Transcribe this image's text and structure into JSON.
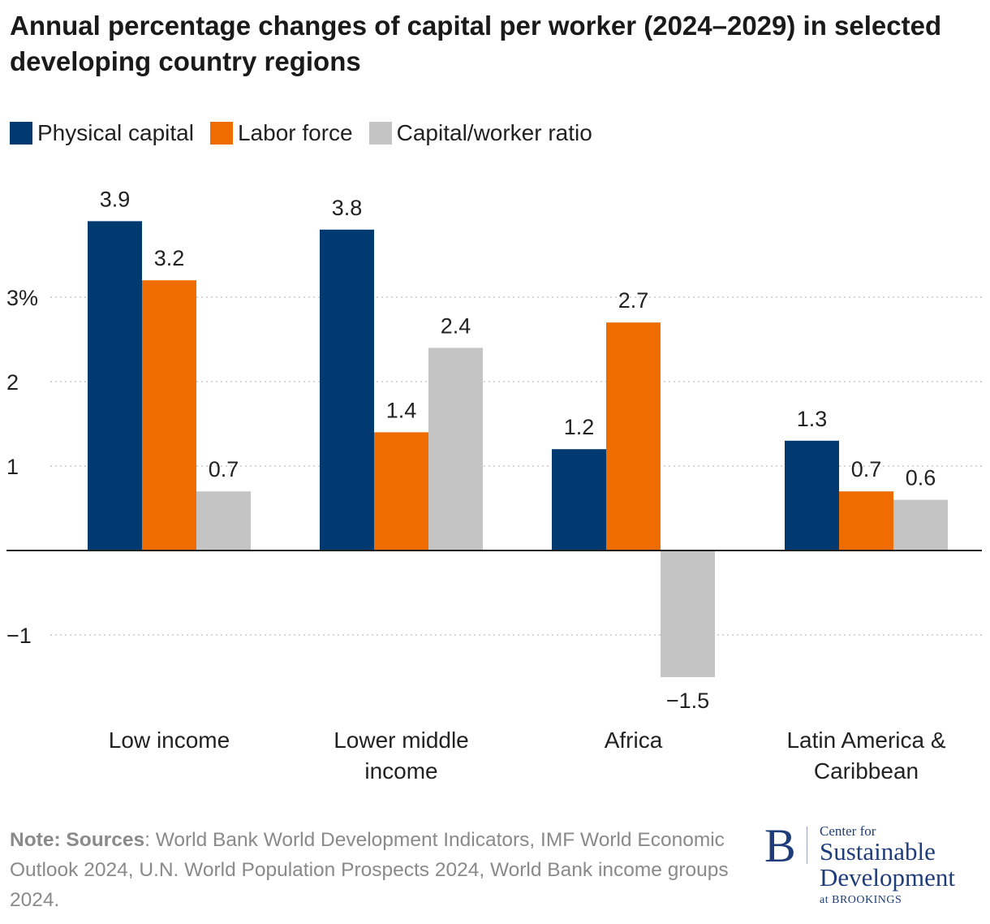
{
  "title": "Annual percentage changes of capital per worker (2024–2029) in selected developing country regions",
  "legend": {
    "items": [
      {
        "label": "Physical capital",
        "color": "#003a70"
      },
      {
        "label": "Labor force",
        "color": "#ef6c00"
      },
      {
        "label": "Capital/worker ratio",
        "color": "#c4c4c4"
      }
    ]
  },
  "chart_data": {
    "type": "bar",
    "categories": [
      [
        "Low income"
      ],
      [
        "Lower middle",
        "income"
      ],
      [
        "Africa"
      ],
      [
        "Latin America &",
        "Caribbean"
      ]
    ],
    "series": [
      {
        "name": "Physical capital",
        "color": "#003a70",
        "values": [
          3.9,
          3.8,
          1.2,
          1.3
        ],
        "labels": [
          "3.9",
          "3.8",
          "1.2",
          "1.3"
        ]
      },
      {
        "name": "Labor force",
        "color": "#ef6c00",
        "values": [
          3.2,
          1.4,
          2.7,
          0.7
        ],
        "labels": [
          "3.2",
          "1.4",
          "2.7",
          "0.7"
        ]
      },
      {
        "name": "Capital/worker ratio",
        "color": "#c4c4c4",
        "values": [
          0.7,
          2.4,
          -1.5,
          0.6
        ],
        "labels": [
          "0.7",
          "2.4",
          "−1.5",
          "0.6"
        ]
      }
    ],
    "yticks": [
      {
        "value": 3,
        "label": "3%"
      },
      {
        "value": 2,
        "label": "2"
      },
      {
        "value": 1,
        "label": "1"
      },
      {
        "value": -1,
        "label": "−1"
      }
    ],
    "ylim": [
      -1.9,
      4.1
    ],
    "grid": true,
    "legend_position": "top-left"
  },
  "note": {
    "bold": "Note: Sources",
    "text": ": World Bank World Development Indicators, IMF World Economic Outlook 2024, U.N. World Population Prospects 2024, World Bank income groups 2024."
  },
  "logo": {
    "letter": "B",
    "line1": "Center for",
    "line2": "Sustainable",
    "line3": "Development",
    "line4": "at BROOKINGS"
  }
}
